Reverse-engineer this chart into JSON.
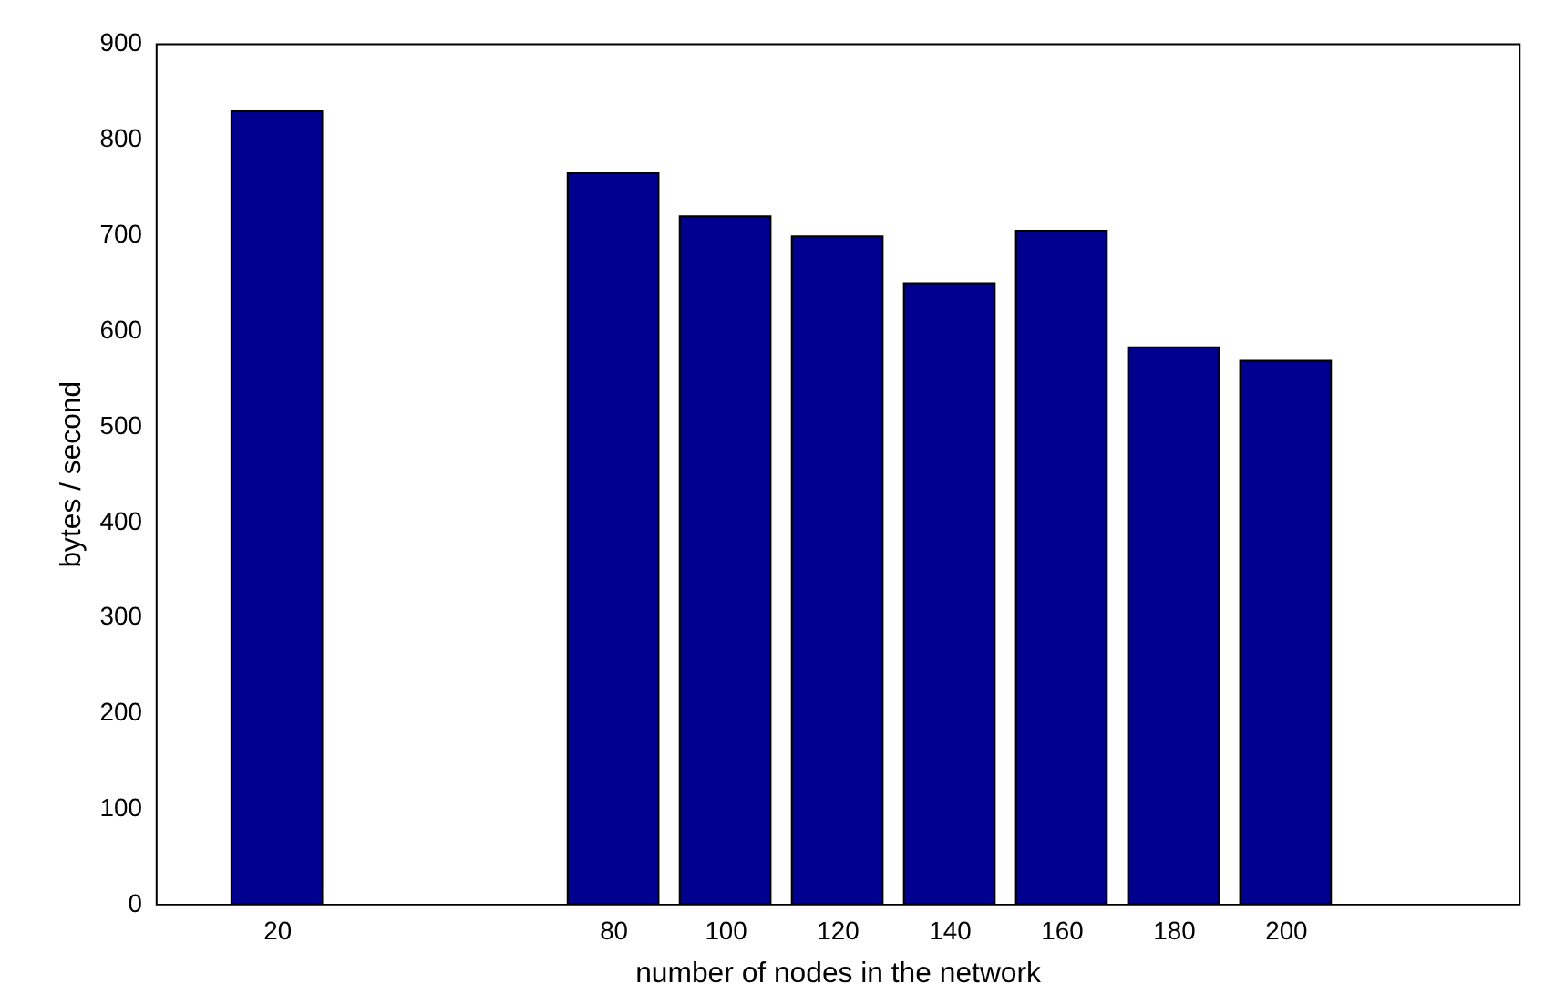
{
  "chart_data": {
    "type": "bar",
    "xlabel": "number of nodes in the network",
    "ylabel": "bytes / second",
    "x": [
      20,
      80,
      100,
      120,
      140,
      160,
      180,
      200
    ],
    "values": [
      829,
      764,
      719,
      698,
      649,
      704,
      582,
      568
    ],
    "color": "#00008f",
    "xlim": [
      0,
      240
    ],
    "xticks": [
      20,
      80,
      100,
      120,
      140,
      160,
      180,
      200
    ],
    "ylim": [
      0,
      900
    ],
    "yticks": [
      0,
      100,
      200,
      300,
      400,
      500,
      600,
      700,
      800,
      900
    ],
    "grid": false
  }
}
